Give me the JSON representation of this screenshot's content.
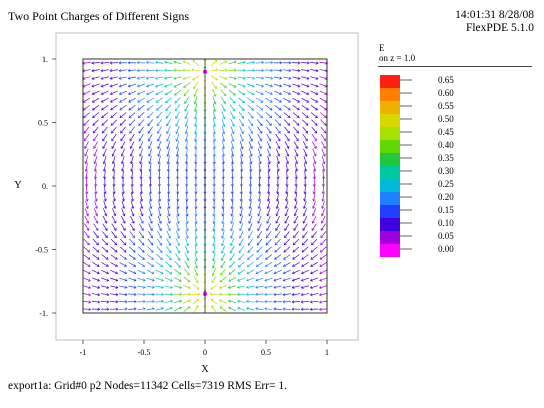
{
  "header": {
    "title": "Two Point Charges of Different Signs",
    "timestamp": "14:01:31 8/28/08",
    "software": "FlexPDE 5.1.0"
  },
  "footer": {
    "status": "export1a:  Grid#0  p2  Nodes=11342 Cells=7319 RMS Err= 1."
  },
  "legend": {
    "variable": "E",
    "surface": "on z = 1.0",
    "levels": [
      "0.65",
      "0.60",
      "0.55",
      "0.50",
      "0.45",
      "0.40",
      "0.35",
      "0.30",
      "0.25",
      "0.20",
      "0.15",
      "0.10",
      "0.05",
      "0.00"
    ],
    "colors": [
      "#ff2010",
      "#ff8000",
      "#f0b000",
      "#d8d800",
      "#a8e000",
      "#60d800",
      "#20c840",
      "#00c8a0",
      "#00b8d8",
      "#2080ff",
      "#2040ff",
      "#4000e0",
      "#a000e0",
      "#ff00ff"
    ]
  },
  "chart_data": {
    "type": "vector-field",
    "title": "Two Point Charges of Different Signs",
    "xlabel": "X",
    "ylabel": "Y",
    "xlim": [
      -1.2,
      1.2
    ],
    "ylim": [
      -1.25,
      1.15
    ],
    "xticks": [
      -1,
      -0.5,
      0,
      0.5,
      1
    ],
    "xtick_labels": [
      "-1",
      "-0.5",
      "0",
      "0.5",
      "1"
    ],
    "yticks": [
      1,
      0.5,
      0,
      -0.5,
      -1
    ],
    "ytick_labels": [
      "1.",
      "0.5",
      "0.",
      "-0.5",
      "-1."
    ],
    "domain": {
      "x": [
        -1,
        1
      ],
      "y": [
        -1,
        1
      ]
    },
    "charges": [
      {
        "x": 0,
        "y": 0.9,
        "sign": "positive"
      },
      {
        "x": 0,
        "y": -0.85,
        "sign": "negative"
      }
    ],
    "color_variable": "E",
    "color_range": [
      0,
      0.65
    ],
    "grid": false
  }
}
